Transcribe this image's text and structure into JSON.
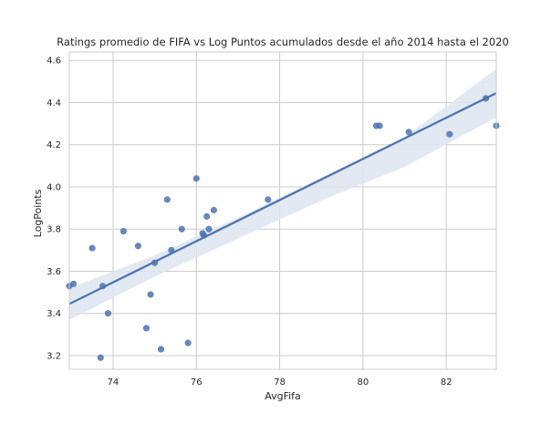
{
  "chart_data": {
    "type": "scatter",
    "title": "Ratings promedio de FIFA vs Log Puntos acumulados desde el año 2014 hasta el 2020",
    "xlabel": "AvgFifa",
    "ylabel": "LogPoints",
    "xlim": [
      72.95,
      83.2
    ],
    "ylim": [
      3.135,
      4.64
    ],
    "xticks": [
      74,
      76,
      78,
      80,
      82
    ],
    "yticks": [
      3.2,
      3.4,
      3.6,
      3.8,
      4.0,
      4.2,
      4.4,
      4.6
    ],
    "grid": true,
    "style": "seaborn-whitegrid",
    "colors": {
      "points": "#4c72b0",
      "line": "#4c72b0",
      "band": "#dde5f1",
      "grid": "#cccccc",
      "frame": "#cccccc"
    },
    "points": [
      {
        "x": 72.95,
        "y": 3.53
      },
      {
        "x": 73.05,
        "y": 3.54
      },
      {
        "x": 73.5,
        "y": 3.71
      },
      {
        "x": 73.7,
        "y": 3.19
      },
      {
        "x": 73.75,
        "y": 3.53
      },
      {
        "x": 73.88,
        "y": 3.4
      },
      {
        "x": 74.25,
        "y": 3.79
      },
      {
        "x": 74.6,
        "y": 3.72
      },
      {
        "x": 74.8,
        "y": 3.33
      },
      {
        "x": 74.9,
        "y": 3.49
      },
      {
        "x": 75.0,
        "y": 3.64
      },
      {
        "x": 75.15,
        "y": 3.23
      },
      {
        "x": 75.3,
        "y": 3.94
      },
      {
        "x": 75.4,
        "y": 3.7
      },
      {
        "x": 75.65,
        "y": 3.8
      },
      {
        "x": 75.8,
        "y": 3.26
      },
      {
        "x": 76.0,
        "y": 4.04
      },
      {
        "x": 76.15,
        "y": 3.78
      },
      {
        "x": 76.18,
        "y": 3.77
      },
      {
        "x": 76.25,
        "y": 3.86
      },
      {
        "x": 76.3,
        "y": 3.8
      },
      {
        "x": 76.42,
        "y": 3.89
      },
      {
        "x": 77.72,
        "y": 3.94
      },
      {
        "x": 80.32,
        "y": 4.29
      },
      {
        "x": 80.4,
        "y": 4.29
      },
      {
        "x": 81.1,
        "y": 4.26
      },
      {
        "x": 82.08,
        "y": 4.25
      },
      {
        "x": 82.95,
        "y": 4.42
      },
      {
        "x": 83.2,
        "y": 4.29
      }
    ],
    "regression": {
      "x": [
        72.95,
        83.2
      ],
      "y": [
        3.445,
        4.445
      ]
    },
    "ci_band": {
      "x": [
        72.95,
        75.0,
        77.0,
        79.0,
        81.0,
        83.2
      ],
      "upper": [
        3.52,
        3.675,
        3.855,
        4.045,
        4.235,
        4.56
      ],
      "lower": [
        3.37,
        3.575,
        3.755,
        3.935,
        4.095,
        4.33
      ]
    }
  }
}
